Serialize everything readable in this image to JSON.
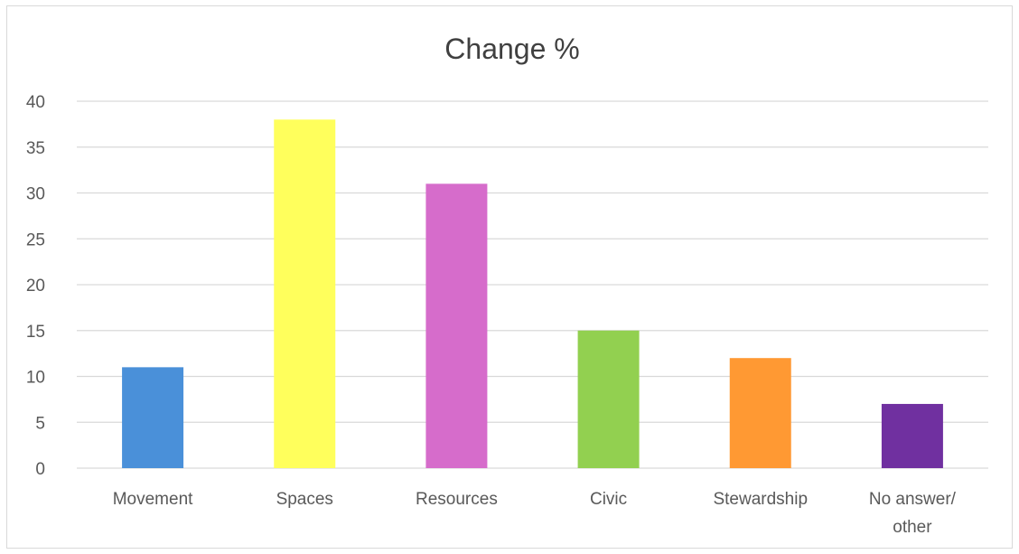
{
  "chart_data": {
    "type": "bar",
    "title": "Change %",
    "xlabel": "",
    "ylabel": "",
    "categories": [
      "Movement",
      "Spaces",
      "Resources",
      "Civic",
      "Stewardship",
      "No answer/ other"
    ],
    "category_lines": [
      [
        "Movement"
      ],
      [
        "Spaces"
      ],
      [
        "Resources"
      ],
      [
        "Civic"
      ],
      [
        "Stewardship"
      ],
      [
        "No answer/",
        "other"
      ]
    ],
    "values": [
      11,
      38,
      31,
      15,
      12,
      7
    ],
    "colors": [
      "#4a90d9",
      "#ffff5c",
      "#d66ccb",
      "#92d050",
      "#ff9933",
      "#7030a0"
    ],
    "ylim": [
      0,
      40
    ],
    "yticks": [
      0,
      5,
      10,
      15,
      20,
      25,
      30,
      35,
      40
    ],
    "grid": true,
    "gridline_color": "#d9d9d9",
    "legend": "none"
  }
}
